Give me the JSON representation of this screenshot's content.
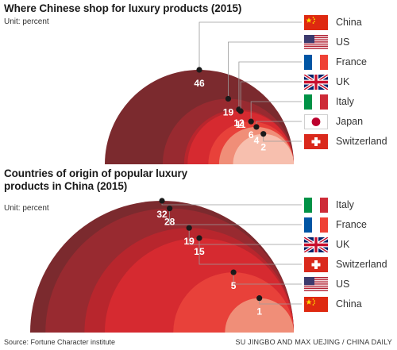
{
  "chart_data": [
    {
      "type": "bar",
      "title": "Where Chinese shop for luxury products (2015)",
      "unit": "Unit: percent",
      "categories": [
        "China",
        "US",
        "France",
        "UK",
        "Italy",
        "Japan",
        "Switzerland"
      ],
      "values": [
        46,
        19,
        12,
        11,
        6,
        4,
        2
      ]
    },
    {
      "type": "bar",
      "title": "Countries of origin of popular luxury products in China (2015)",
      "unit": "Unit: percent",
      "categories": [
        "Italy",
        "France",
        "UK",
        "Switzerland",
        "US",
        "China"
      ],
      "values": [
        32,
        28,
        19,
        15,
        5,
        1
      ]
    }
  ],
  "footer": {
    "source": "Source: Fortune Character institute",
    "credit": "SU JINGBO AND MAX UEJING / CHINA DAILY"
  },
  "colors": {
    "chart1": [
      "#7b2a2e",
      "#982a30",
      "#b8262d",
      "#d62a30",
      "#e8413a",
      "#f08e78",
      "#f7bfae"
    ],
    "chart2": [
      "#7b2a2e",
      "#982a30",
      "#b8262d",
      "#d62a30",
      "#e8413a",
      "#f08e78"
    ]
  }
}
